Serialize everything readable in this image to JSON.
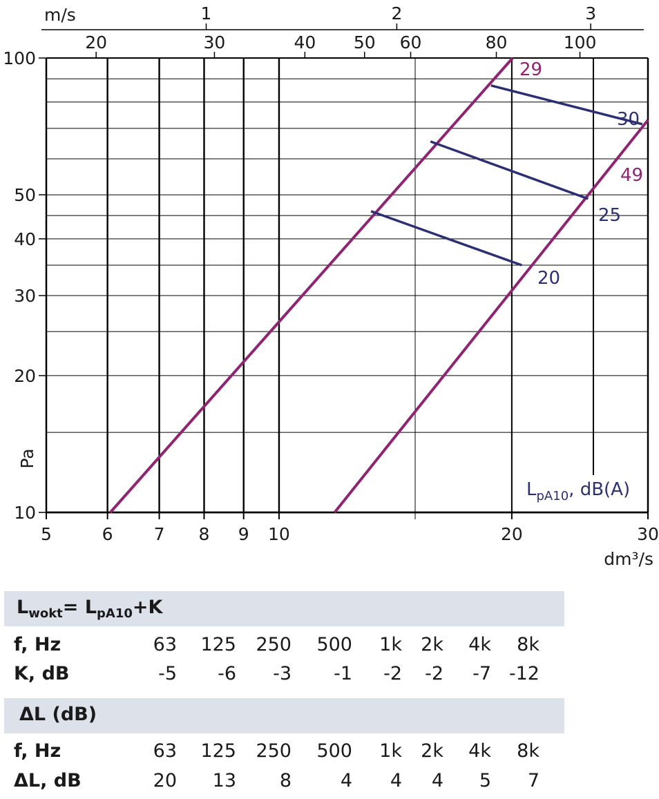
{
  "chart_data": {
    "type": "line",
    "xlabel": "dm³/s",
    "ylabel": "Pa",
    "x_scale": "log",
    "y_scale": "log",
    "xlim": [
      5,
      30
    ],
    "ylim": [
      10,
      100
    ],
    "x_ticks": [
      5,
      6,
      7,
      8,
      9,
      10,
      20,
      30
    ],
    "y_ticks": [
      10,
      20,
      30,
      40,
      50,
      100
    ],
    "y_minor_gridlines": [
      15,
      25,
      35,
      45,
      60,
      70,
      80,
      90
    ],
    "top_axis_1": {
      "label": "m/s",
      "ticks": [
        "1",
        "2",
        "3"
      ],
      "tick_at_flow": [
        8.05,
        14.2,
        25.3
      ]
    },
    "top_axis_2": {
      "ticks": [
        "20",
        "30",
        "40",
        "50",
        "60",
        "80",
        "100"
      ],
      "tick_at_flow": [
        5.8,
        8.25,
        10.8,
        12.9,
        14.8,
        19.1,
        24.5
      ]
    },
    "vertical_gridlines": [
      6,
      7,
      8,
      9,
      10,
      20,
      25.5
    ],
    "magenta_lines": [
      {
        "label": "29",
        "points": [
          [
            6.05,
            10
          ],
          [
            20.05,
            100
          ]
        ]
      },
      {
        "label": "49",
        "points": [
          [
            11.8,
            10
          ],
          [
            30,
            73
          ]
        ]
      }
    ],
    "noise_lines": [
      {
        "label": "30",
        "points": [
          [
            18.8,
            87
          ],
          [
            29.5,
            71.5
          ]
        ]
      },
      {
        "label": "25",
        "points": [
          [
            15.7,
            65.5
          ],
          [
            25.1,
            49
          ]
        ]
      },
      {
        "label": "20",
        "points": [
          [
            13.15,
            46
          ],
          [
            20.6,
            35
          ]
        ]
      }
    ],
    "noise_legend": "dB(A)",
    "noise_legend_sym": "L",
    "noise_legend_sub": "pA10",
    "colors": {
      "magenta": "#8e2472",
      "navy": "#2d2f73",
      "grid": "#000000",
      "band": "#dde1ea"
    }
  },
  "tables": {
    "kwall": {
      "title_main": "L",
      "title_sub1": "wokt",
      "title_mid": "= L",
      "title_sub2": "pA10",
      "title_end": "+K",
      "freq_label": "f, Hz",
      "freqs": [
        "63",
        "125",
        "250",
        "500",
        "1k",
        "2k",
        "4k",
        "8k"
      ],
      "k_label": "K, dB",
      "k_values": [
        "-5",
        "-6",
        "-3",
        "-1",
        "-2",
        "-2",
        "-7",
        "-12"
      ]
    },
    "delta": {
      "title": "ΔL (dB)",
      "freq_label": "f, Hz",
      "freqs": [
        "63",
        "125",
        "250",
        "500",
        "1k",
        "2k",
        "4k",
        "8k"
      ],
      "dl_label": "ΔL, dB",
      "dl_values": [
        "20",
        "13",
        "8",
        "4",
        "4",
        "4",
        "5",
        "7"
      ]
    }
  }
}
